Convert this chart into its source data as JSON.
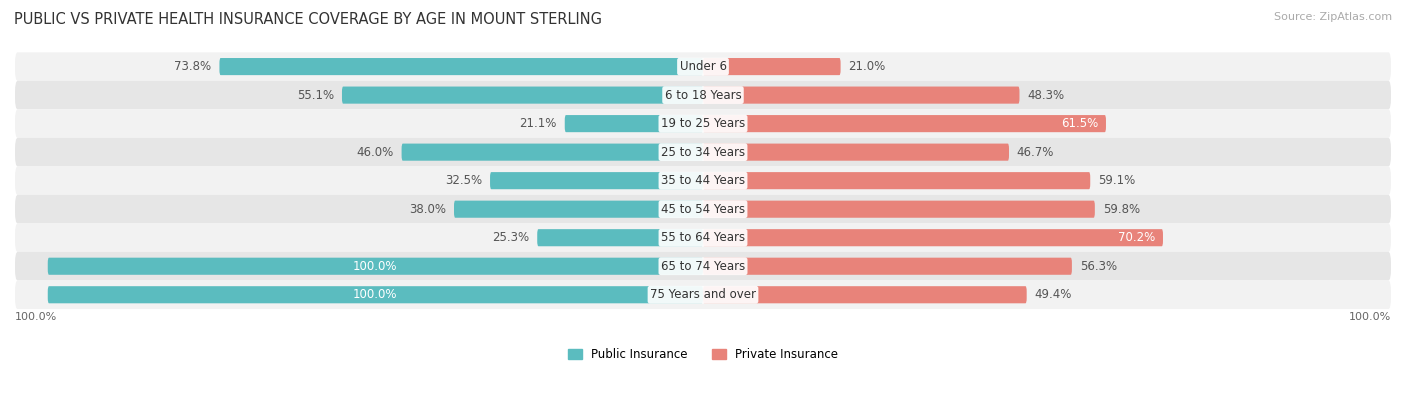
{
  "title": "PUBLIC VS PRIVATE HEALTH INSURANCE COVERAGE BY AGE IN MOUNT STERLING",
  "source": "Source: ZipAtlas.com",
  "categories": [
    "Under 6",
    "6 to 18 Years",
    "19 to 25 Years",
    "25 to 34 Years",
    "35 to 44 Years",
    "45 to 54 Years",
    "55 to 64 Years",
    "65 to 74 Years",
    "75 Years and over"
  ],
  "public_values": [
    73.8,
    55.1,
    21.1,
    46.0,
    32.5,
    38.0,
    25.3,
    100.0,
    100.0
  ],
  "private_values": [
    21.0,
    48.3,
    61.5,
    46.7,
    59.1,
    59.8,
    70.2,
    56.3,
    49.4
  ],
  "public_color": "#5bbcbf",
  "private_color": "#e8837a",
  "bar_height": 0.6,
  "row_bg_light": "#f2f2f2",
  "row_bg_dark": "#e6e6e6",
  "title_fontsize": 10.5,
  "label_fontsize": 8.5,
  "tick_fontsize": 8,
  "source_fontsize": 8,
  "legend_fontsize": 8.5,
  "axis_label": "100.0%",
  "max_val": 100,
  "xlim": 105
}
